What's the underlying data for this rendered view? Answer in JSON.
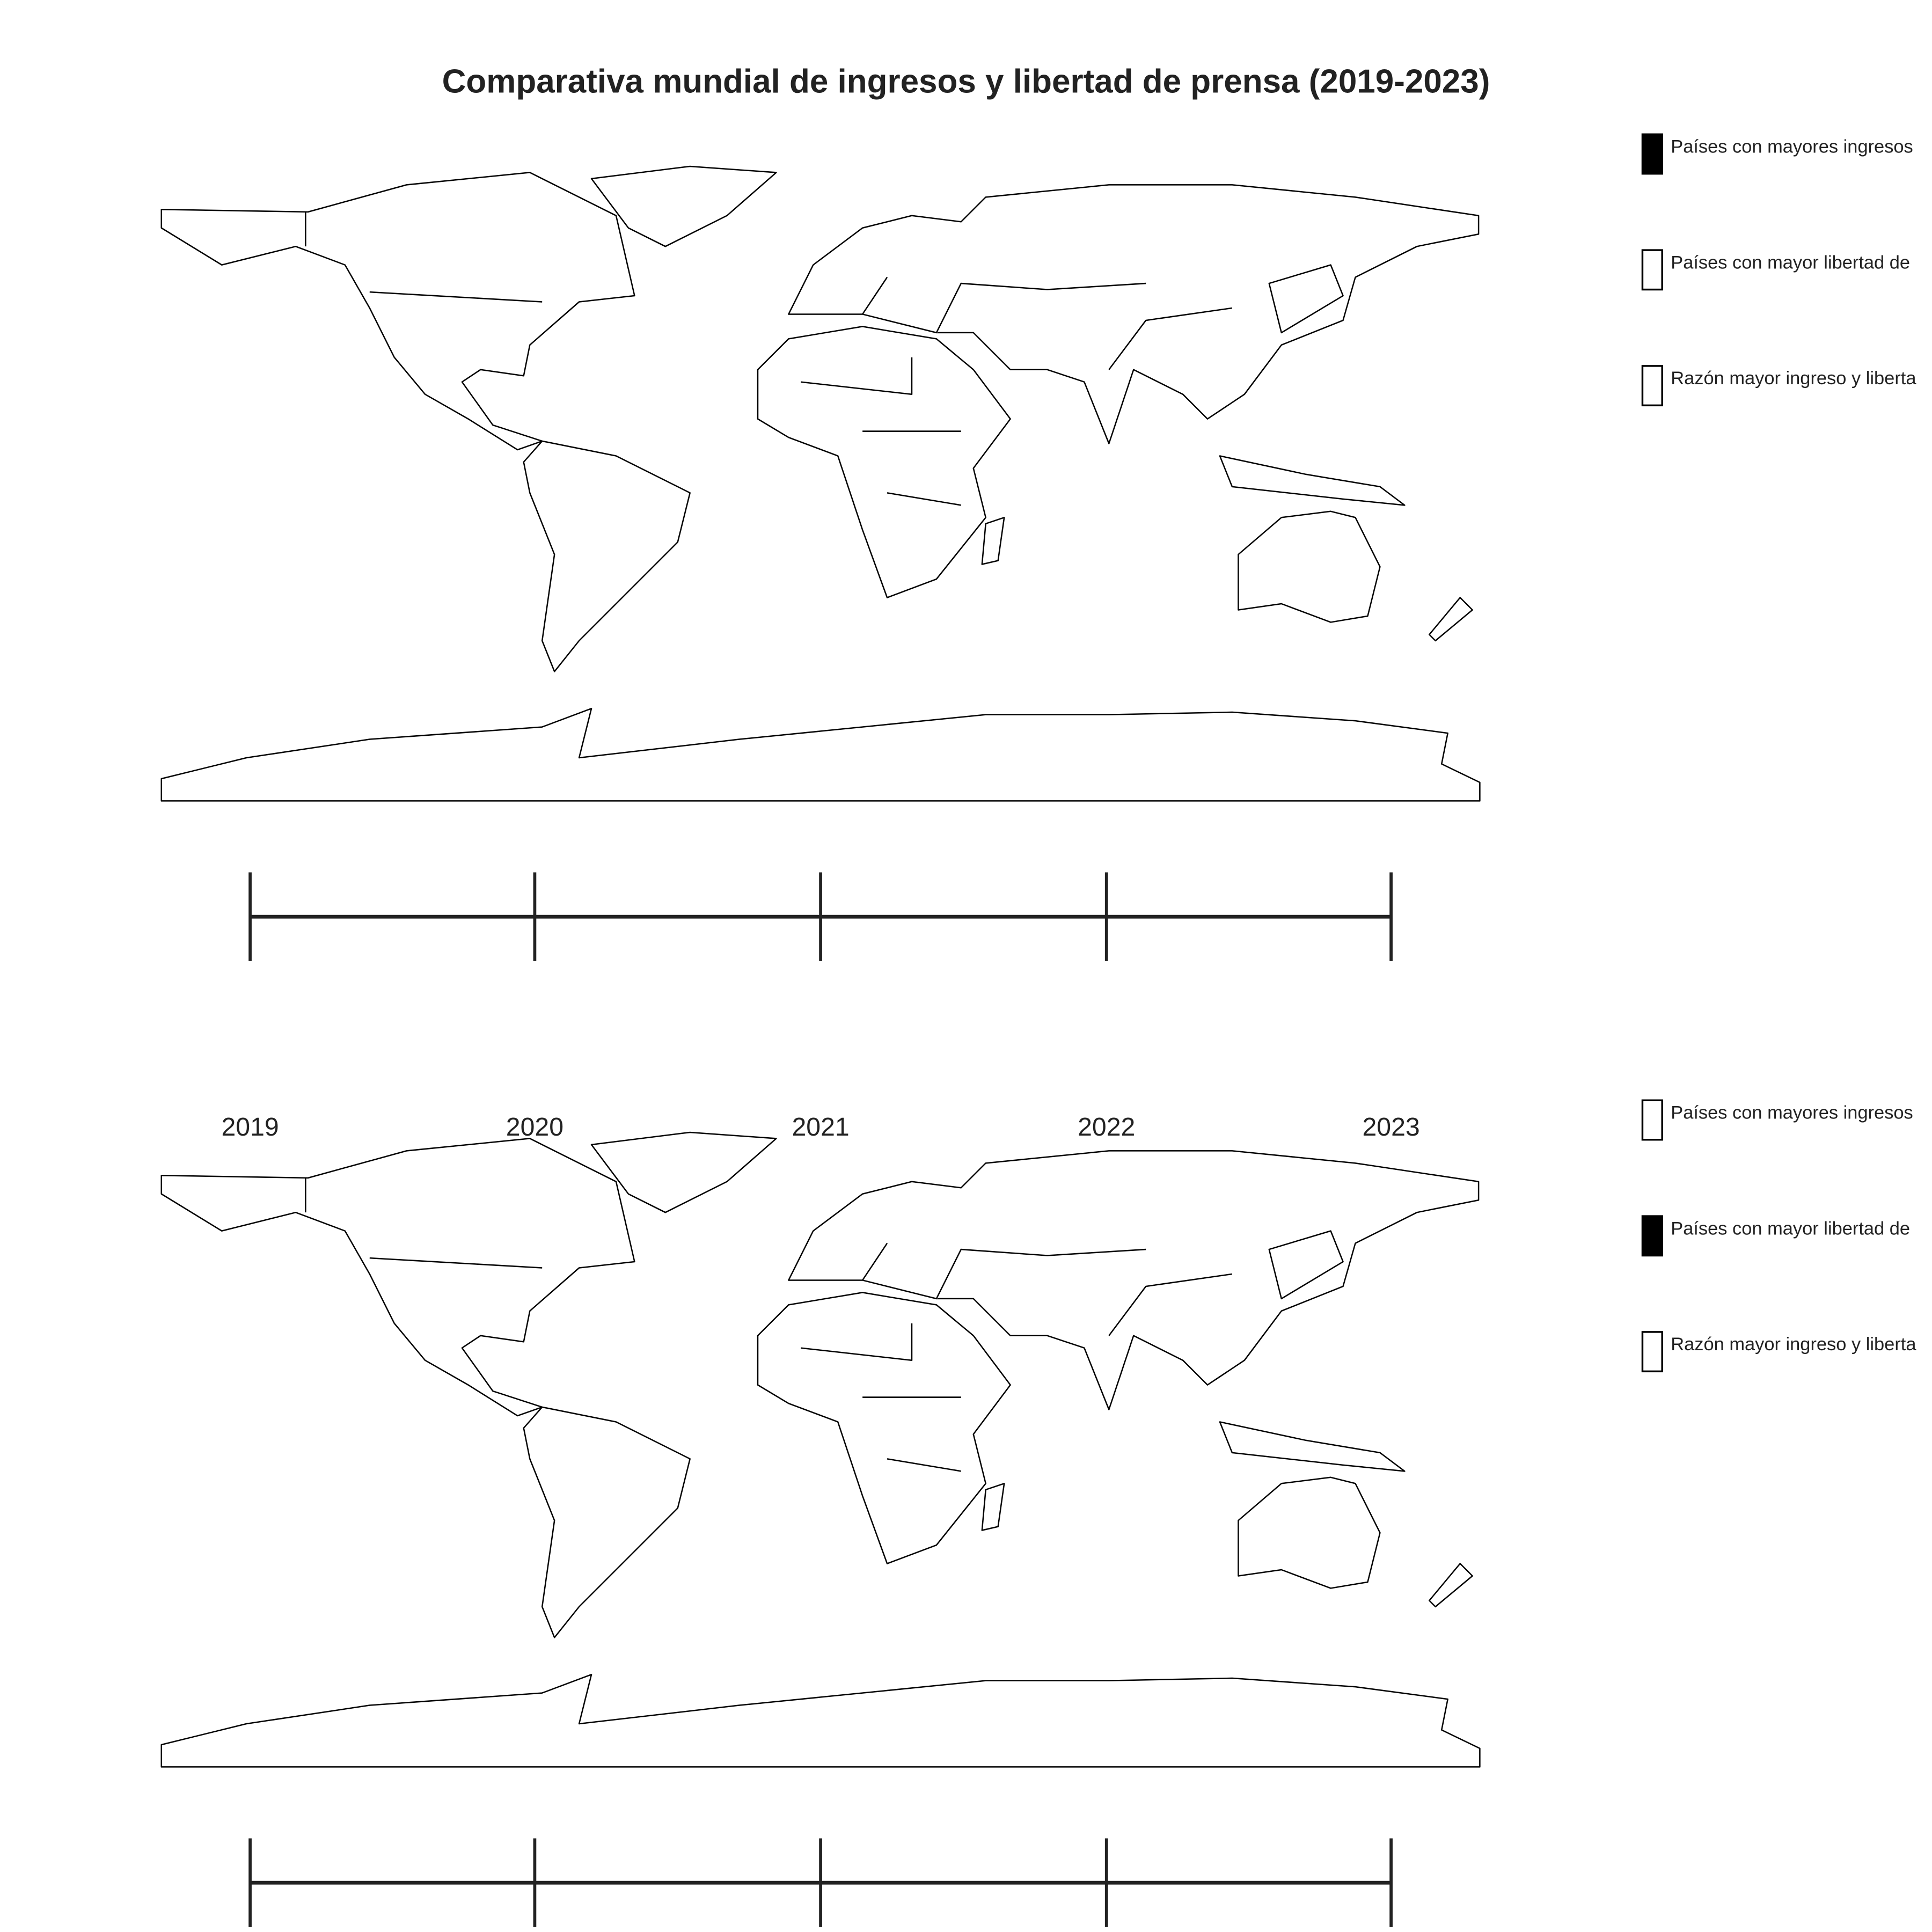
{
  "title": "Comparativa mundial de ingresos y libertad de prensa (2019-2023)",
  "panels": [
    {
      "legend": [
        {
          "label": "Países con mayores ingresos",
          "filled": true
        },
        {
          "label": "Países con mayor libertad de",
          "filled": false
        },
        {
          "label": "Razón mayor ingreso y liberta",
          "filled": false
        }
      ]
    },
    {
      "legend": [
        {
          "label": "Países con mayores ingresos",
          "filled": false
        },
        {
          "label": "Países con mayor libertad de",
          "filled": true
        },
        {
          "label": "Razón mayor ingreso y liberta",
          "filled": false
        }
      ]
    }
  ],
  "timeline": {
    "years": [
      "2019",
      "2020",
      "2021",
      "2022",
      "2023"
    ]
  }
}
